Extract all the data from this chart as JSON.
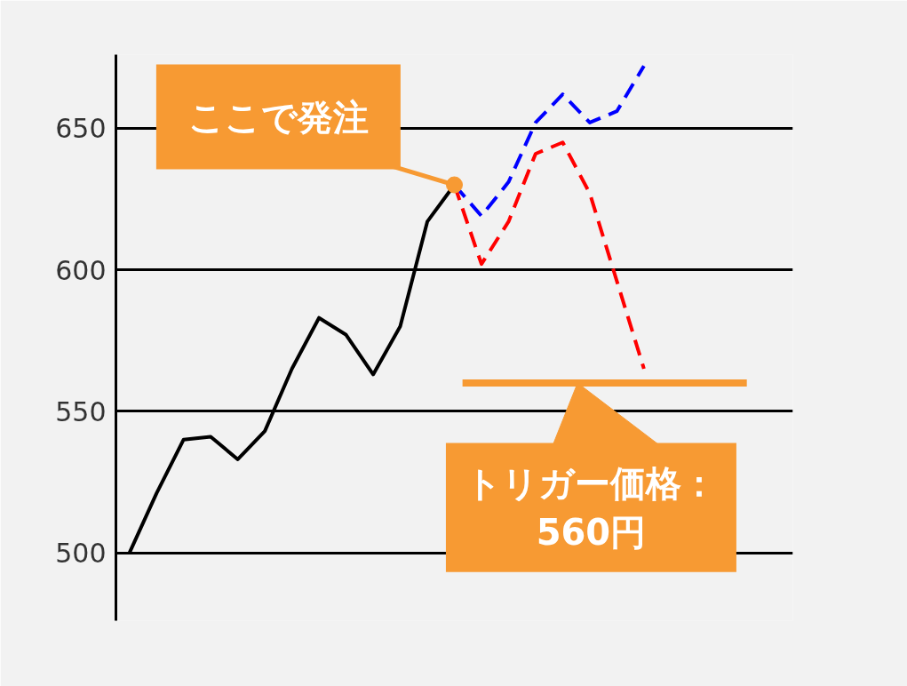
{
  "chart_data": {
    "type": "line",
    "categories": [
      null,
      null,
      null,
      null,
      null,
      null,
      null,
      null,
      null,
      null,
      null,
      null,
      null,
      null,
      null,
      null,
      null,
      null,
      null,
      null,
      null,
      null,
      null,
      null,
      null
    ],
    "series": [
      {
        "color": "#000000",
        "line_style": "solid",
        "values": [
          500,
          521,
          540,
          541,
          533,
          543,
          565,
          583,
          577,
          563,
          580,
          617,
          630,
          null,
          null,
          null,
          null,
          null,
          null,
          null,
          null,
          null,
          null,
          null,
          null
        ]
      },
      {
        "color": "#0000ff",
        "line_style": "dashed",
        "values": [
          null,
          null,
          null,
          null,
          null,
          null,
          null,
          null,
          null,
          null,
          null,
          null,
          630,
          619,
          631,
          652,
          662,
          652,
          656,
          672,
          null,
          null,
          null,
          null,
          null
        ]
      },
      {
        "color": "#ff0000",
        "line_style": "dashed",
        "values": [
          null,
          null,
          null,
          null,
          null,
          null,
          null,
          null,
          null,
          null,
          null,
          null,
          630,
          602,
          617,
          641,
          645,
          627,
          596,
          565,
          null,
          null,
          null,
          null,
          null
        ]
      }
    ],
    "ylim": [
      476,
      676
    ],
    "yticks": [
      500,
      550,
      600,
      650
    ],
    "grid": "y",
    "tick_labels": "y",
    "ref_lines": [
      {
        "axis": "y",
        "value": 560,
        "label": "トリガー価格：\n560円",
        "color": "#f79a33"
      }
    ],
    "annotations": [
      "ここで発注"
    ]
  }
}
